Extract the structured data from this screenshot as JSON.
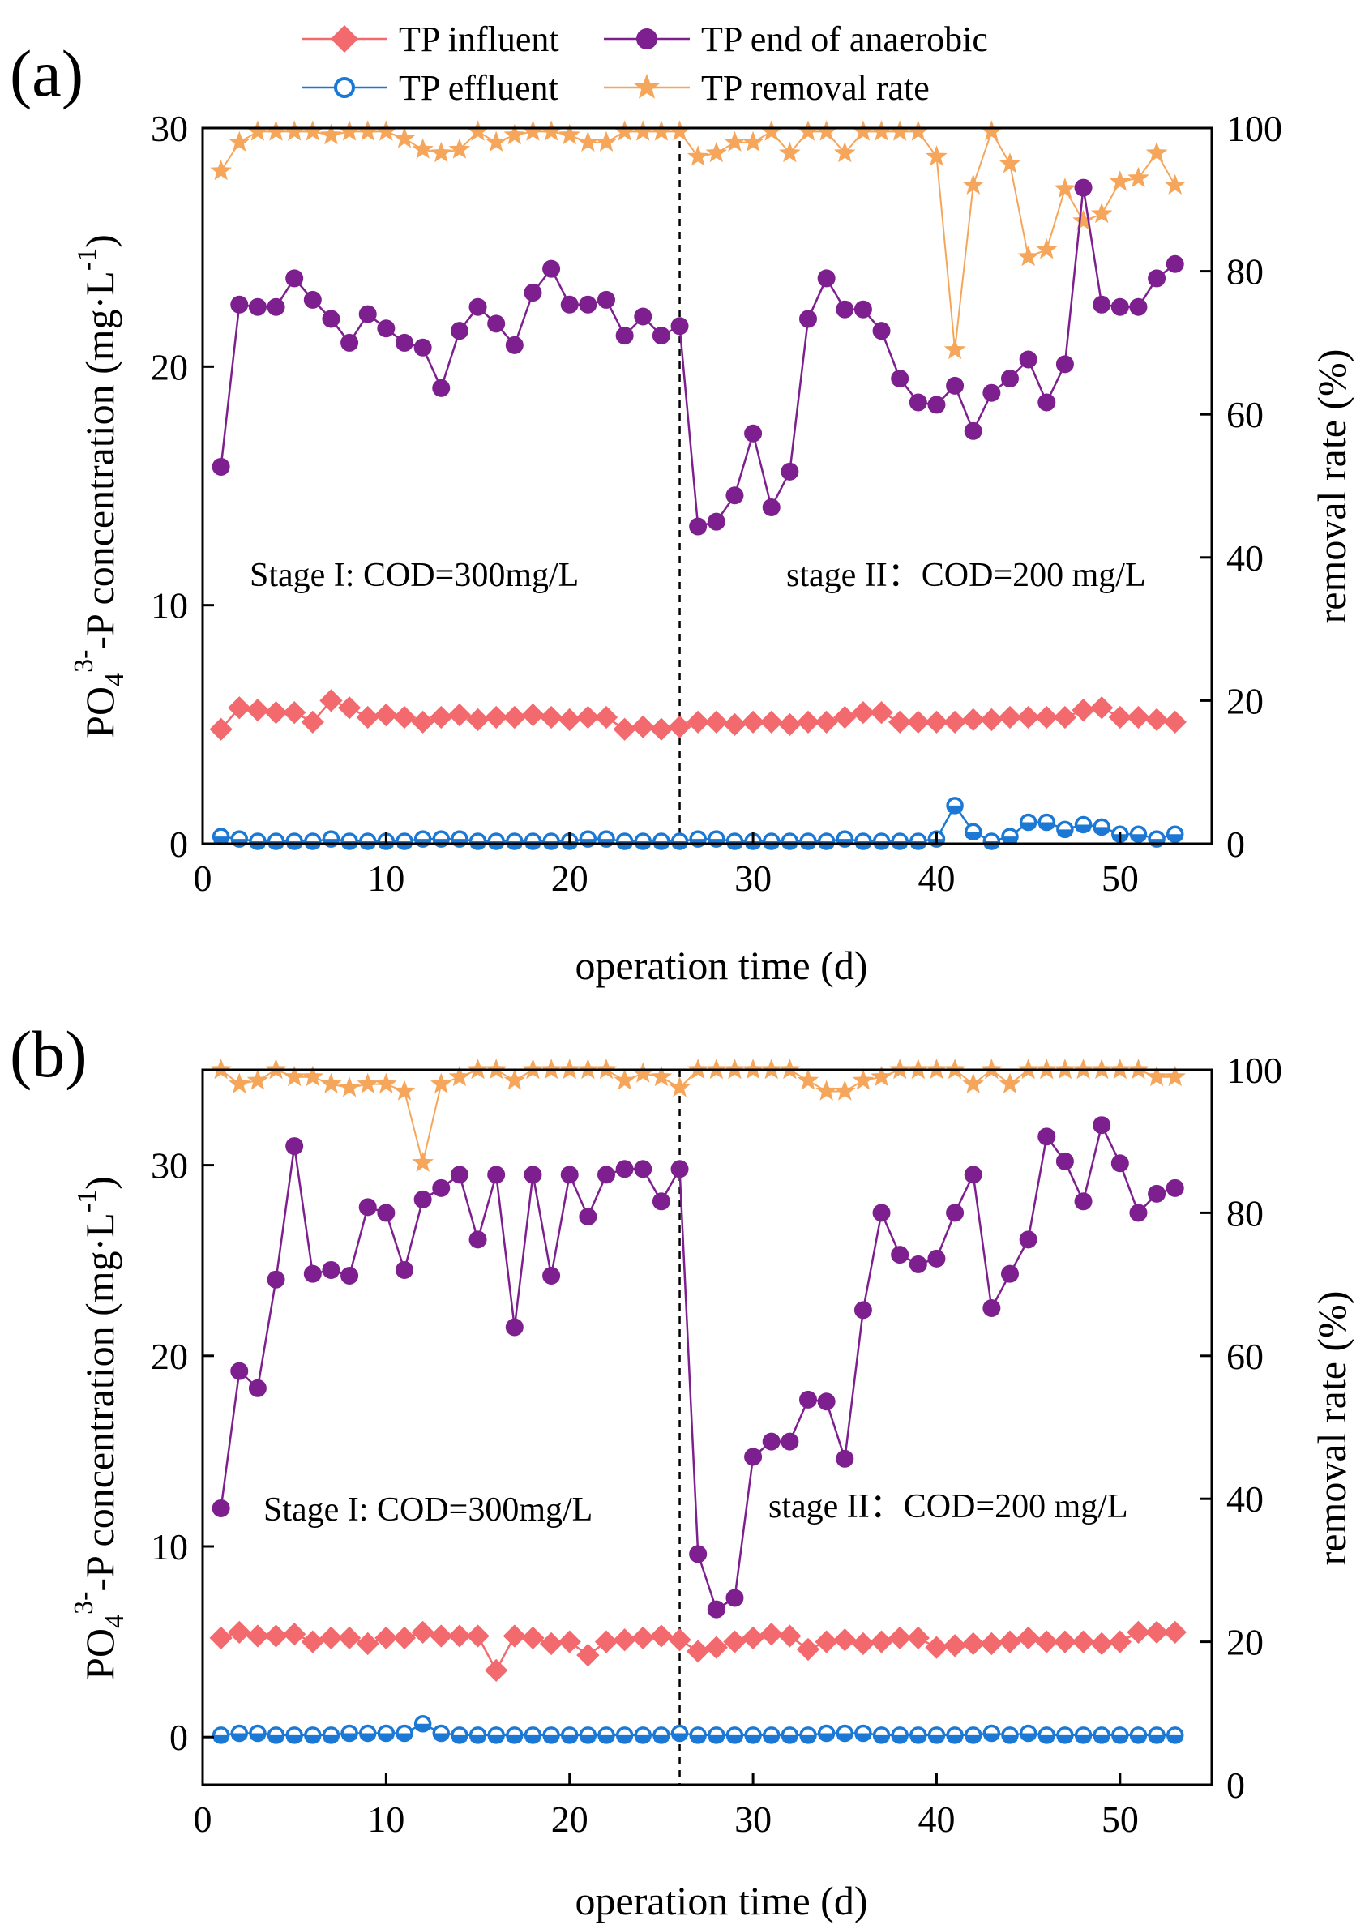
{
  "legend": {
    "influent": "TP influent",
    "anaerobic": "TP end of anaerobic",
    "effluent": "TP effluent",
    "removal": "TP removal rate"
  },
  "colors": {
    "influent": "#F26A6E",
    "anaerobic": "#7D1F8E",
    "effluent": "#1B78D4",
    "removal": "#F5A65B"
  },
  "chart_data": [
    {
      "type": "line",
      "panel_label": "(a)",
      "xlabel": "operation time (d)",
      "ylabel_main": "PO",
      "ylabel_sub": "4",
      "ylabel_sup": "3-",
      "ylabel_rest": "-P concentration (mg·L",
      "ylabel_unit_sup": "-1",
      "ylabel_close": ")",
      "y2label": "removal rate (%)",
      "xlim": [
        0,
        55
      ],
      "ylim": [
        0,
        30
      ],
      "y2lim": [
        0,
        100
      ],
      "xticks": [
        0,
        10,
        20,
        30,
        40,
        50
      ],
      "yticks": [
        0,
        10,
        20,
        30
      ],
      "y2ticks": [
        0,
        20,
        40,
        60,
        80,
        100
      ],
      "divider_x": 26,
      "stage1_text": "Stage I: COD=300mg/L",
      "stage2_text": "stage II：COD=200 mg/L",
      "x": [
        1,
        2,
        3,
        4,
        5,
        6,
        7,
        8,
        9,
        10,
        11,
        12,
        13,
        14,
        15,
        16,
        17,
        18,
        19,
        20,
        21,
        22,
        23,
        24,
        25,
        26,
        27,
        28,
        29,
        30,
        31,
        32,
        33,
        34,
        35,
        36,
        37,
        38,
        39,
        40,
        41,
        42,
        43,
        44,
        45,
        46,
        47,
        48,
        49,
        50,
        51,
        52,
        53
      ],
      "series": [
        {
          "name": "TP influent",
          "key": "influent",
          "axis": "left",
          "values": [
            4.8,
            5.7,
            5.6,
            5.5,
            5.5,
            5.1,
            6.0,
            5.7,
            5.3,
            5.4,
            5.3,
            5.1,
            5.3,
            5.4,
            5.2,
            5.3,
            5.3,
            5.4,
            5.3,
            5.2,
            5.3,
            5.3,
            4.8,
            4.9,
            4.8,
            4.9,
            5.1,
            5.1,
            5.0,
            5.1,
            5.1,
            5.0,
            5.1,
            5.1,
            5.3,
            5.5,
            5.5,
            5.1,
            5.1,
            5.1,
            5.1,
            5.2,
            5.2,
            5.3,
            5.3,
            5.3,
            5.3,
            5.6,
            5.7,
            5.3,
            5.3,
            5.2,
            5.1
          ]
        },
        {
          "name": "TP end of anaerobic",
          "key": "anaerobic",
          "axis": "left",
          "values": [
            15.8,
            22.6,
            22.5,
            22.5,
            23.7,
            22.8,
            22.0,
            21.0,
            22.2,
            21.6,
            21.0,
            20.8,
            19.1,
            21.5,
            22.5,
            21.8,
            20.9,
            23.1,
            24.1,
            22.6,
            22.6,
            22.8,
            21.3,
            22.1,
            21.3,
            21.7,
            13.3,
            13.5,
            14.6,
            17.2,
            14.1,
            15.6,
            22.0,
            23.7,
            22.4,
            22.4,
            21.5,
            19.5,
            18.5,
            18.4,
            19.2,
            17.3,
            18.9,
            19.5,
            20.3,
            18.5,
            20.1,
            27.5,
            22.6,
            22.5,
            22.5,
            23.7,
            24.3
          ]
        },
        {
          "name": "TP effluent",
          "key": "effluent",
          "axis": "left",
          "values": [
            0.3,
            0.2,
            0.1,
            0.1,
            0.1,
            0.1,
            0.2,
            0.1,
            0.1,
            0.1,
            0.1,
            0.2,
            0.2,
            0.2,
            0.1,
            0.1,
            0.1,
            0.1,
            0.1,
            0.1,
            0.2,
            0.2,
            0.1,
            0.1,
            0.1,
            0.1,
            0.2,
            0.2,
            0.1,
            0.1,
            0.1,
            0.1,
            0.1,
            0.1,
            0.2,
            0.1,
            0.1,
            0.1,
            0.1,
            0.2,
            1.6,
            0.5,
            0.1,
            0.3,
            0.9,
            0.9,
            0.6,
            0.8,
            0.7,
            0.4,
            0.4,
            0.2,
            0.4
          ]
        },
        {
          "name": "TP removal rate",
          "key": "removal",
          "axis": "right",
          "values": [
            94,
            98,
            99.5,
            99.5,
            99.5,
            99.5,
            99,
            99.5,
            99.5,
            99.5,
            98.5,
            97,
            96.5,
            97,
            99.5,
            98,
            99,
            99.5,
            99.5,
            99,
            98,
            98,
            99.5,
            99.5,
            99.5,
            99.5,
            96,
            96.5,
            98,
            98,
            99.5,
            96.5,
            99.5,
            99.5,
            96.5,
            99.5,
            99.5,
            99.5,
            99.5,
            96,
            69,
            92,
            99.5,
            95,
            82,
            83,
            91.5,
            87,
            88,
            92.5,
            93,
            96.5,
            92
          ]
        }
      ]
    },
    {
      "type": "line",
      "panel_label": "(b)",
      "xlabel": "operation time (d)",
      "ylabel_main": "PO",
      "ylabel_sub": "4",
      "ylabel_sup": "3-",
      "ylabel_rest": "-P concentration (mg·L",
      "ylabel_unit_sup": "-1",
      "ylabel_close": ")",
      "y2label": "removal rate (%)",
      "xlim": [
        0,
        55
      ],
      "ylim": [
        -2.5,
        35
      ],
      "y2lim": [
        0,
        100
      ],
      "xticks": [
        0,
        10,
        20,
        30,
        40,
        50
      ],
      "yticks": [
        0,
        10,
        20,
        30
      ],
      "y2ticks": [
        0,
        20,
        40,
        60,
        80,
        100
      ],
      "divider_x": 26,
      "stage1_text": "Stage I: COD=300mg/L",
      "stage2_text": "stage II：COD=200 mg/L",
      "x": [
        1,
        2,
        3,
        4,
        5,
        6,
        7,
        8,
        9,
        10,
        11,
        12,
        13,
        14,
        15,
        16,
        17,
        18,
        19,
        20,
        21,
        22,
        23,
        24,
        25,
        26,
        27,
        28,
        29,
        30,
        31,
        32,
        33,
        34,
        35,
        36,
        37,
        38,
        39,
        40,
        41,
        42,
        43,
        44,
        45,
        46,
        47,
        48,
        49,
        50,
        51,
        52,
        53
      ],
      "series": [
        {
          "name": "TP influent",
          "key": "influent",
          "axis": "left",
          "values": [
            5.2,
            5.5,
            5.3,
            5.3,
            5.4,
            5.0,
            5.2,
            5.2,
            4.9,
            5.2,
            5.2,
            5.5,
            5.3,
            5.3,
            5.3,
            3.5,
            5.3,
            5.2,
            4.9,
            5.0,
            4.3,
            5.0,
            5.1,
            5.2,
            5.3,
            5.1,
            4.5,
            4.7,
            5.0,
            5.2,
            5.4,
            5.3,
            4.6,
            5.0,
            5.1,
            4.9,
            5.0,
            5.2,
            5.2,
            4.7,
            4.8,
            4.9,
            4.9,
            5.0,
            5.2,
            5.0,
            5.0,
            5.0,
            4.9,
            5.0,
            5.5,
            5.5,
            5.5
          ]
        },
        {
          "name": "TP end of anaerobic",
          "key": "anaerobic",
          "axis": "left",
          "values": [
            12.0,
            19.2,
            18.3,
            24.0,
            31.0,
            24.3,
            24.5,
            24.2,
            27.8,
            27.5,
            24.5,
            28.2,
            28.8,
            29.5,
            26.1,
            29.5,
            21.5,
            29.5,
            24.2,
            29.5,
            27.3,
            29.5,
            29.8,
            29.8,
            28.1,
            29.8,
            9.6,
            6.7,
            7.3,
            14.7,
            15.5,
            15.5,
            17.7,
            17.6,
            14.6,
            22.4,
            27.5,
            25.3,
            24.8,
            25.1,
            27.5,
            29.5,
            22.5,
            24.3,
            26.1,
            31.5,
            30.2,
            28.1,
            32.1,
            30.1,
            27.5,
            28.5,
            28.8
          ]
        },
        {
          "name": "TP effluent",
          "key": "effluent",
          "axis": "left",
          "values": [
            0.1,
            0.2,
            0.2,
            0.1,
            0.1,
            0.1,
            0.1,
            0.2,
            0.2,
            0.2,
            0.2,
            0.7,
            0.2,
            0.1,
            0.1,
            0.1,
            0.1,
            0.1,
            0.1,
            0.1,
            0.1,
            0.1,
            0.1,
            0.1,
            0.1,
            0.2,
            0.1,
            0.1,
            0.1,
            0.1,
            0.1,
            0.1,
            0.1,
            0.2,
            0.2,
            0.2,
            0.1,
            0.1,
            0.1,
            0.1,
            0.1,
            0.1,
            0.2,
            0.1,
            0.2,
            0.1,
            0.1,
            0.1,
            0.1,
            0.1,
            0.1,
            0.1,
            0.1
          ]
        },
        {
          "name": "TP removal rate",
          "key": "removal",
          "axis": "right",
          "values": [
            100,
            98,
            98.5,
            100,
            99,
            99,
            98,
            97.5,
            98,
            98,
            97,
            87,
            98,
            99,
            100,
            100,
            98.5,
            100,
            100,
            100,
            100,
            100,
            98.5,
            99.5,
            99,
            97.5,
            100,
            100,
            100,
            100,
            100,
            100,
            98.5,
            97,
            97,
            98.5,
            99,
            100,
            100,
            100,
            100,
            98,
            100,
            98,
            100,
            100,
            100,
            100,
            100,
            100,
            100,
            99,
            99
          ]
        }
      ]
    }
  ]
}
